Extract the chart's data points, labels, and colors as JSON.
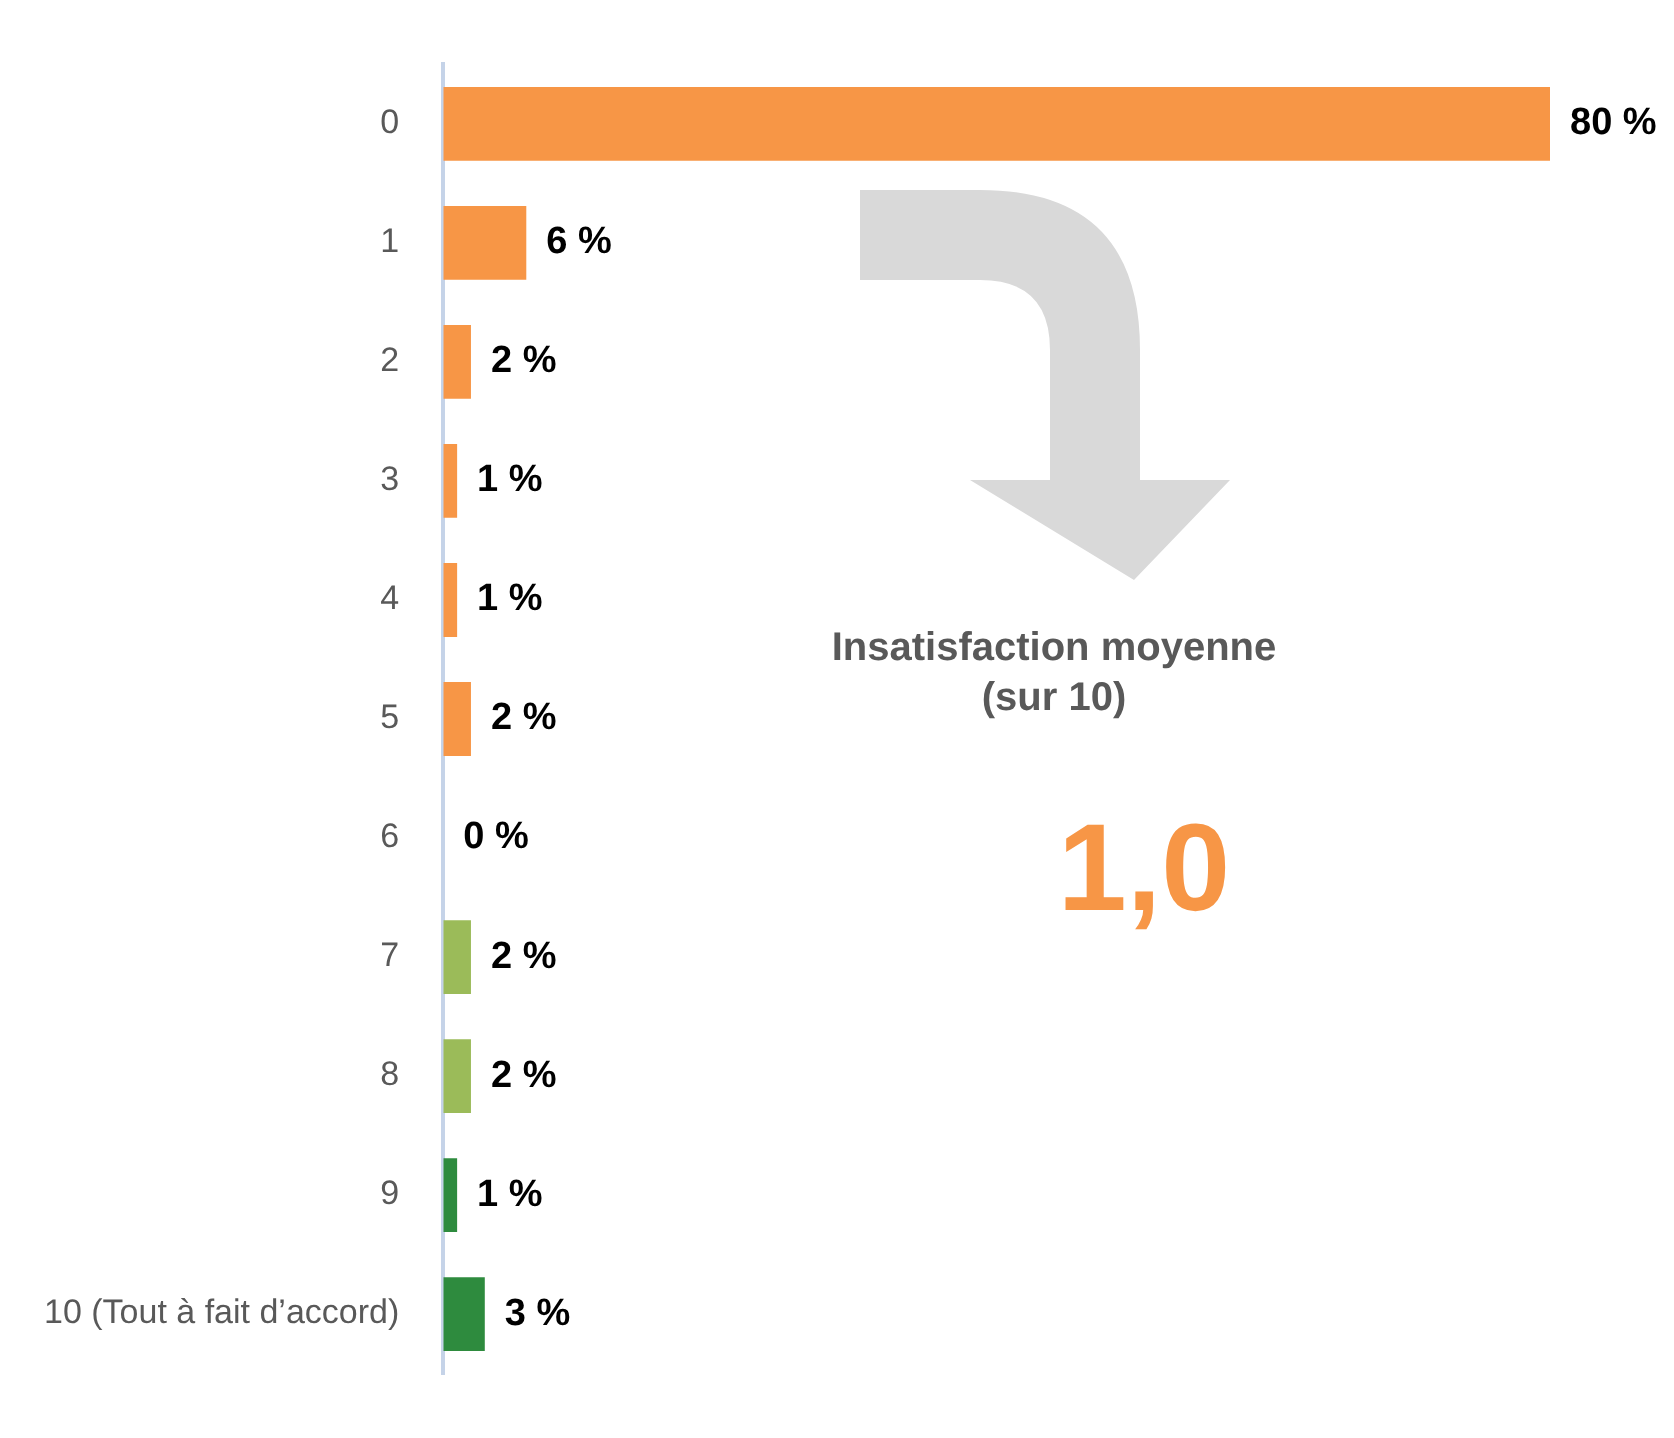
{
  "chart_data": {
    "type": "bar",
    "orientation": "horizontal",
    "categories": [
      "0",
      "1",
      "2",
      "3",
      "4",
      "5",
      "6",
      "7",
      "8",
      "9",
      "10 (Tout à fait d’accord)"
    ],
    "values": [
      80,
      6,
      2,
      1,
      1,
      2,
      0,
      2,
      2,
      1,
      3
    ],
    "colors": [
      "#f79646",
      "#f79646",
      "#f79646",
      "#f79646",
      "#f79646",
      "#f79646",
      "#f79646",
      "#9bbb59",
      "#9bbb59",
      "#2e8b3e",
      "#2e8b3e"
    ],
    "value_labels": [
      "80 %",
      "6 %",
      "2 %",
      "1 %",
      "1 %",
      "2 %",
      "0 %",
      "2 %",
      "2 %",
      "1 %",
      "3 %"
    ],
    "annotations": [
      "Insatisfaction moyenne\n(sur 10)",
      "1,0"
    ]
  }
}
